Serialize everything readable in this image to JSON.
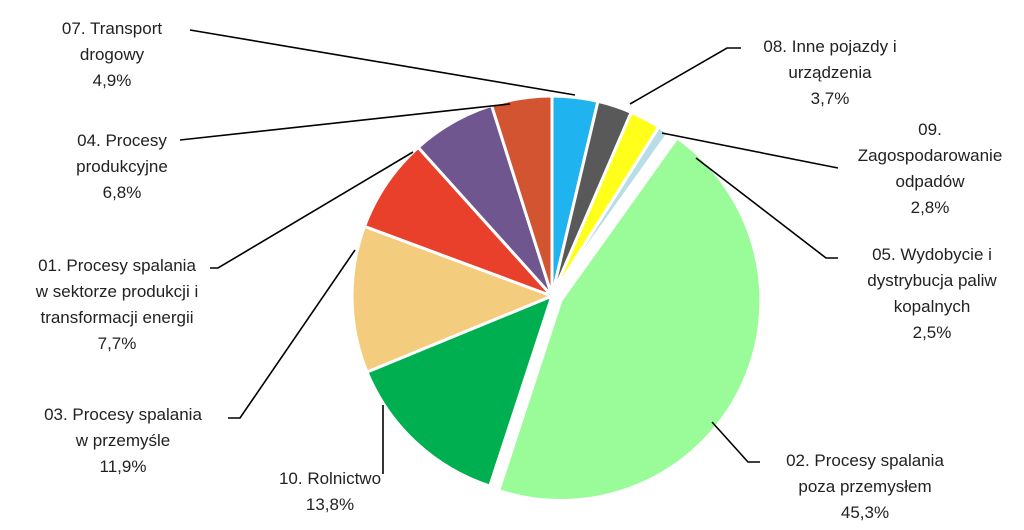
{
  "chart_data": {
    "type": "pie",
    "title": "",
    "start_angle_deg": 0,
    "direction": "clockwise",
    "slices": [
      {
        "id": "08",
        "lines": [
          "08. Inne pojazdy i",
          "urządzenia",
          "3,7%"
        ],
        "value": 3.7,
        "color": "#1fb4f0"
      },
      {
        "id": "09",
        "lines": [
          "09.",
          "Zagospodarowanie",
          "odpadów",
          "2,8%"
        ],
        "value": 2.8,
        "color": "#595959"
      },
      {
        "id": "05",
        "lines": [
          "05. Wydobycie i",
          "dystrybucja paliw",
          "kopalnych",
          "2,5%"
        ],
        "value": 2.5,
        "color": "#ffff1a"
      },
      {
        "id": "06",
        "lines": [],
        "value": 0.9,
        "color": "#b9dde6"
      },
      {
        "id": "02",
        "lines": [
          "02. Procesy spalania",
          "poza przemysłem",
          "45,3%"
        ],
        "value": 45.3,
        "color": "#9afc99",
        "exploded": true
      },
      {
        "id": "10",
        "lines": [
          "10. Rolnictwo",
          "13,8%"
        ],
        "value": 13.8,
        "color": "#00b050"
      },
      {
        "id": "03",
        "lines": [
          "03. Procesy spalania",
          "w przemyśle",
          "11,9%"
        ],
        "value": 11.9,
        "color": "#f4cc7e"
      },
      {
        "id": "01",
        "lines": [
          "01. Procesy spalania",
          "w sektorze produkcji i",
          "transformacji energii",
          "7,7%"
        ],
        "value": 7.7,
        "color": "#e8402a"
      },
      {
        "id": "04",
        "lines": [
          "04. Procesy",
          "produkcyjne",
          "6,8%"
        ],
        "value": 6.8,
        "color": "#6f568e"
      },
      {
        "id": "07",
        "lines": [
          "07. Transport",
          "drogowy",
          "4,9%"
        ],
        "value": 4.9,
        "color": "#d35431"
      }
    ]
  }
}
